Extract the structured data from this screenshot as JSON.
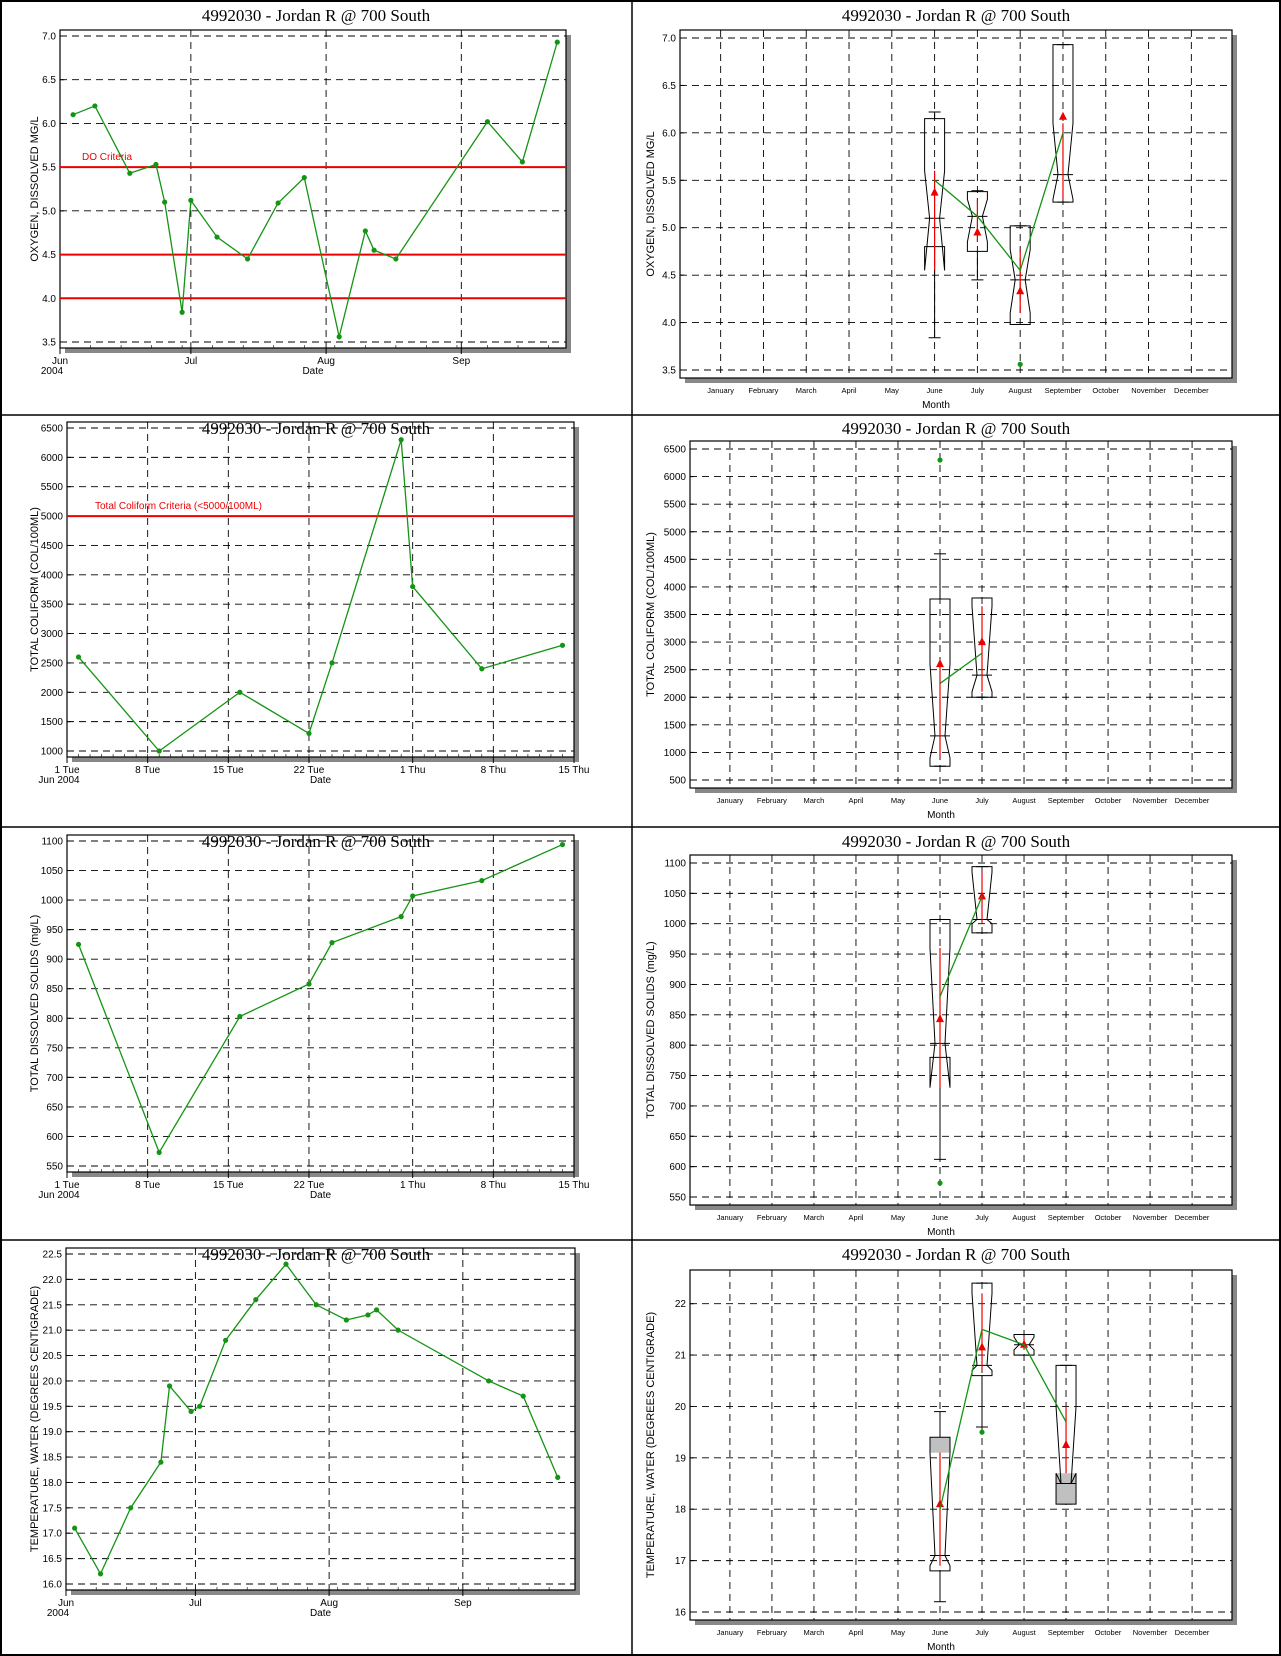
{
  "chart_data": [
    {
      "type": "line",
      "title": "4992030 - Jordan R @ 700 South",
      "xlabel": "Date",
      "ylabel": "OXYGEN, DISSOLVED MG/L",
      "x_tick_labels": [
        "Jun",
        "Jul",
        "Aug",
        "Sep"
      ],
      "x_sub_label": "2004",
      "ylim": [
        3.5,
        7.0
      ],
      "y_ticks": [
        "3.5",
        "4.0",
        "4.5",
        "5.0",
        "5.5",
        "6.0",
        "6.5",
        "7.0"
      ],
      "grid": true,
      "series": [
        {
          "x": [
            "2004-06-04",
            "2004-06-09",
            "2004-06-17",
            "2004-06-23",
            "2004-06-25",
            "2004-06-29",
            "2004-07-01",
            "2004-07-07",
            "2004-07-14",
            "2004-07-21",
            "2004-07-27",
            "2004-08-04",
            "2004-08-10",
            "2004-08-12",
            "2004-08-17",
            "2004-09-07",
            "2004-09-15",
            "2004-09-23"
          ],
          "values": [
            6.1,
            6.2,
            5.43,
            5.53,
            5.1,
            3.84,
            5.12,
            4.7,
            4.45,
            5.09,
            5.38,
            3.56,
            4.77,
            4.55,
            4.45,
            6.02,
            5.56,
            6.93
          ]
        }
      ],
      "reference_lines": [
        {
          "value": 5.5,
          "label": "DO Criteria"
        },
        {
          "value": 4.5,
          "label": ""
        },
        {
          "value": 4.0,
          "label": ""
        }
      ]
    },
    {
      "type": "box",
      "title": "4992030 - Jordan R @ 700 South",
      "xlabel": "Month",
      "ylabel": "OXYGEN, DISSOLVED MG/L",
      "categories": [
        "January",
        "February",
        "March",
        "April",
        "May",
        "June",
        "July",
        "August",
        "September",
        "October",
        "November",
        "December"
      ],
      "ylim": [
        3.5,
        7.0
      ],
      "y_ticks": [
        "3.5",
        "4.0",
        "4.5",
        "5.0",
        "5.5",
        "6.0",
        "6.5",
        "7.0"
      ],
      "grid": true,
      "boxes": [
        {
          "month": "June",
          "min": 3.84,
          "q1": 4.8,
          "median": 5.1,
          "q3": 6.15,
          "max": 6.22,
          "mean": 5.37,
          "notch_lo": 4.55,
          "notch_hi": 5.6
        },
        {
          "month": "July",
          "min": 4.45,
          "q1": 4.75,
          "median": 5.12,
          "q3": 5.38,
          "max": 5.39,
          "mean": 4.95,
          "notch_lo": 4.85,
          "notch_hi": 5.3
        },
        {
          "month": "August",
          "min": 3.98,
          "q1": 3.98,
          "median": 4.45,
          "q3": 5.02,
          "max": 5.02,
          "mean": 4.33,
          "notch_lo": 4.1,
          "notch_hi": 4.77,
          "outliers": [
            3.56
          ]
        },
        {
          "month": "September",
          "min": 5.27,
          "q1": 5.27,
          "median": 5.56,
          "q3": 6.93,
          "max": 6.93,
          "mean": 6.17,
          "notch_lo": 5.3,
          "notch_hi": 6.1
        }
      ],
      "median_line": [
        5.5,
        5.12,
        4.55,
        6.0
      ]
    },
    {
      "type": "line",
      "title": "4992030 - Jordan R @ 700 South",
      "xlabel": "Date",
      "ylabel": "TOTAL COLIFORM (COL/100ML)",
      "x_tick_labels": [
        "1 Tue",
        "8 Tue",
        "15 Tue",
        "22 Tue",
        "1 Thu",
        "8 Thu",
        "15 Thu"
      ],
      "x_sub_label": "Jun 2004",
      "ylim": [
        1000,
        6500
      ],
      "y_ticks": [
        "1000",
        "1500",
        "2000",
        "2500",
        "3000",
        "3500",
        "4000",
        "4500",
        "5000",
        "5500",
        "6000",
        "6500"
      ],
      "grid": true,
      "series": [
        {
          "x": [
            "2004-06-02",
            "2004-06-09",
            "2004-06-16",
            "2004-06-22",
            "2004-06-24",
            "2004-06-30",
            "2004-07-01",
            "2004-07-07",
            "2004-07-14"
          ],
          "values": [
            2600,
            1000,
            2000,
            1300,
            2500,
            6300,
            3800,
            2400,
            2800
          ]
        }
      ],
      "reference_lines": [
        {
          "value": 5000,
          "label": "Total Coliform Criteria (<5000/100ML)"
        }
      ]
    },
    {
      "type": "box",
      "title": "4992030 - Jordan R @ 700 South",
      "xlabel": "Month",
      "ylabel": "TOTAL COLIFORM (COL/100ML)",
      "categories": [
        "January",
        "February",
        "March",
        "April",
        "May",
        "June",
        "July",
        "August",
        "September",
        "October",
        "November",
        "December"
      ],
      "ylim": [
        500,
        6500
      ],
      "y_ticks": [
        "500",
        "1000",
        "1500",
        "2000",
        "2500",
        "3000",
        "3500",
        "4000",
        "4500",
        "5000",
        "5500",
        "6000",
        "6500"
      ],
      "grid": true,
      "boxes": [
        {
          "month": "June",
          "min": 750,
          "q1": 750,
          "median": 1300,
          "q3": 3780,
          "max": 4600,
          "mean": 2600,
          "notch_lo": 900,
          "notch_hi": 2600,
          "outliers": [
            6300
          ]
        },
        {
          "month": "July",
          "min": 2000,
          "q1": 2000,
          "median": 2400,
          "q3": 3800,
          "max": 3800,
          "mean": 3000,
          "notch_lo": 2100,
          "notch_hi": 3650
        }
      ],
      "median_line": [
        2250,
        2800
      ]
    },
    {
      "type": "line",
      "title": "4992030 - Jordan R @ 700 South",
      "xlabel": "Date",
      "ylabel": "TOTAL DISSOLVED SOLIDS (mg/L)",
      "x_tick_labels": [
        "1 Tue",
        "8 Tue",
        "15 Tue",
        "22 Tue",
        "1 Thu",
        "8 Thu",
        "15 Thu"
      ],
      "x_sub_label": "Jun 2004",
      "ylim": [
        550,
        1100
      ],
      "y_ticks": [
        "550",
        "600",
        "650",
        "700",
        "750",
        "800",
        "850",
        "900",
        "950",
        "1000",
        "1050",
        "1100"
      ],
      "grid": true,
      "series": [
        {
          "x": [
            "2004-06-02",
            "2004-06-09",
            "2004-06-16",
            "2004-06-22",
            "2004-06-24",
            "2004-06-30",
            "2004-07-01",
            "2004-07-07",
            "2004-07-14"
          ],
          "values": [
            925,
            573,
            803,
            858,
            928,
            972,
            1007,
            1033,
            1094
          ]
        }
      ]
    },
    {
      "type": "box",
      "title": "4992030 - Jordan R @ 700 South",
      "xlabel": "Month",
      "ylabel": "TOTAL DISSOLVED SOLIDS (mg/L)",
      "categories": [
        "January",
        "February",
        "March",
        "April",
        "May",
        "June",
        "July",
        "August",
        "September",
        "October",
        "November",
        "December"
      ],
      "ylim": [
        550,
        1100
      ],
      "y_ticks": [
        "550",
        "600",
        "650",
        "700",
        "750",
        "800",
        "850",
        "900",
        "950",
        "1000",
        "1050",
        "1100"
      ],
      "grid": true,
      "boxes": [
        {
          "month": "June",
          "min": 612,
          "q1": 780,
          "median": 803,
          "q3": 1007,
          "max": 1007,
          "mean": 843,
          "notch_lo": 730,
          "notch_hi": 960,
          "outliers": [
            573
          ]
        },
        {
          "month": "July",
          "min": 985,
          "q1": 985,
          "median": 1007,
          "q3": 1094,
          "max": 1094,
          "mean": 1045,
          "notch_lo": 1000,
          "notch_hi": 1085
        }
      ],
      "median_line": [
        880,
        1045
      ]
    },
    {
      "type": "line",
      "title": "4992030 - Jordan R @ 700 South",
      "xlabel": "Date",
      "ylabel": "TEMPERATURE, WATER (DEGREES CENTIGRADE)",
      "x_tick_labels": [
        "Jun",
        "Jul",
        "Aug",
        "Sep"
      ],
      "x_sub_label": "2004",
      "ylim": [
        16.0,
        22.5
      ],
      "y_ticks": [
        "16.0",
        "16.5",
        "17.0",
        "17.5",
        "18.0",
        "18.5",
        "19.0",
        "19.5",
        "20.0",
        "20.5",
        "21.0",
        "21.5",
        "22.0",
        "22.5"
      ],
      "grid": true,
      "series": [
        {
          "x": [
            "2004-06-03",
            "2004-06-09",
            "2004-06-16",
            "2004-06-23",
            "2004-06-25",
            "2004-06-30",
            "2004-07-02",
            "2004-07-08",
            "2004-07-15",
            "2004-07-22",
            "2004-07-29",
            "2004-08-05",
            "2004-08-10",
            "2004-08-12",
            "2004-08-17",
            "2004-09-07",
            "2004-09-15",
            "2004-09-23"
          ],
          "values": [
            17.1,
            16.2,
            17.5,
            18.4,
            19.9,
            19.4,
            19.5,
            20.8,
            21.6,
            22.3,
            21.5,
            21.2,
            21.3,
            21.4,
            21.0,
            20.0,
            19.7,
            18.1
          ]
        }
      ]
    },
    {
      "type": "box",
      "title": "4992030 - Jordan R @ 700 South",
      "xlabel": "Month",
      "ylabel": "TEMPERATURE, WATER (DEGREES CENTIGRADE)",
      "categories": [
        "January",
        "February",
        "March",
        "April",
        "May",
        "June",
        "July",
        "August",
        "September",
        "October",
        "November",
        "December"
      ],
      "ylim": [
        16,
        22.5
      ],
      "y_ticks": [
        "16",
        "17",
        "18",
        "19",
        "20",
        "21",
        "22"
      ],
      "grid": true,
      "boxes": [
        {
          "month": "June",
          "min": 16.2,
          "q1": 16.8,
          "median": 17.1,
          "q3": 19.4,
          "max": 19.9,
          "mean": 18.1,
          "notch_lo": 16.9,
          "notch_hi": 19.1,
          "shade": "upper"
        },
        {
          "month": "July",
          "min": 19.6,
          "q1": 20.6,
          "median": 20.8,
          "q3": 22.4,
          "max": 22.4,
          "mean": 21.15,
          "notch_lo": 20.7,
          "notch_hi": 22.2
        },
        {
          "month": "August",
          "min": 21.0,
          "q1": 21.0,
          "median": 21.2,
          "q3": 21.4,
          "max": 21.4,
          "mean": 21.2,
          "notch_lo": 21.1,
          "notch_hi": 21.35
        },
        {
          "month": "September",
          "min": 18.1,
          "q1": 18.1,
          "median": 18.5,
          "q3": 20.8,
          "max": 20.8,
          "mean": 19.25,
          "notch_lo": 18.7,
          "notch_hi": 20.0,
          "shade": "lower"
        }
      ],
      "median_line": [
        18.0,
        21.5,
        21.2,
        19.7
      ],
      "outliers_extra": [
        {
          "month": "July",
          "value": 19.5
        }
      ]
    }
  ]
}
